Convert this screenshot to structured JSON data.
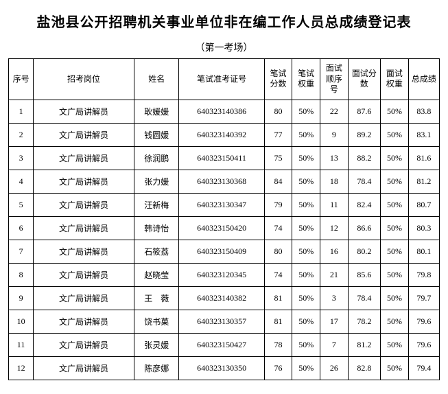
{
  "title": "盐池县公开招聘机关事业单位非在编工作人员总成绩登记表",
  "subtitle": "（第一考场）",
  "columns": [
    "序号",
    "招考岗位",
    "姓名",
    "笔试准考证号",
    "笔试分数",
    "笔试权重",
    "面试顺序号",
    "面试分数",
    "面试权重",
    "总成绩"
  ],
  "rows": [
    {
      "seq": "1",
      "pos": "文广局讲解员",
      "name": "耿媛媛",
      "exam": "640323140386",
      "ws": "80",
      "ww": "50%",
      "io": "22",
      "is": "87.6",
      "iw": "50%",
      "tot": "83.8"
    },
    {
      "seq": "2",
      "pos": "文广局讲解员",
      "name": "钱圆媛",
      "exam": "640323140392",
      "ws": "77",
      "ww": "50%",
      "io": "9",
      "is": "89.2",
      "iw": "50%",
      "tot": "83.1"
    },
    {
      "seq": "3",
      "pos": "文广局讲解员",
      "name": "徐润鹏",
      "exam": "640323150411",
      "ws": "75",
      "ww": "50%",
      "io": "13",
      "is": "88.2",
      "iw": "50%",
      "tot": "81.6"
    },
    {
      "seq": "4",
      "pos": "文广局讲解员",
      "name": "张力媛",
      "exam": "640323130368",
      "ws": "84",
      "ww": "50%",
      "io": "18",
      "is": "78.4",
      "iw": "50%",
      "tot": "81.2"
    },
    {
      "seq": "5",
      "pos": "文广局讲解员",
      "name": "汪新梅",
      "exam": "640323130347",
      "ws": "79",
      "ww": "50%",
      "io": "11",
      "is": "82.4",
      "iw": "50%",
      "tot": "80.7"
    },
    {
      "seq": "6",
      "pos": "文广局讲解员",
      "name": "韩诗怡",
      "exam": "640323150420",
      "ws": "74",
      "ww": "50%",
      "io": "12",
      "is": "86.6",
      "iw": "50%",
      "tot": "80.3"
    },
    {
      "seq": "7",
      "pos": "文广局讲解员",
      "name": "石筱荔",
      "exam": "640323150409",
      "ws": "80",
      "ww": "50%",
      "io": "16",
      "is": "80.2",
      "iw": "50%",
      "tot": "80.1"
    },
    {
      "seq": "8",
      "pos": "文广局讲解员",
      "name": "赵晓莹",
      "exam": "640323120345",
      "ws": "74",
      "ww": "50%",
      "io": "21",
      "is": "85.6",
      "iw": "50%",
      "tot": "79.8"
    },
    {
      "seq": "9",
      "pos": "文广局讲解员",
      "name": "王　薇",
      "exam": "640323140382",
      "ws": "81",
      "ww": "50%",
      "io": "3",
      "is": "78.4",
      "iw": "50%",
      "tot": "79.7"
    },
    {
      "seq": "10",
      "pos": "文广局讲解员",
      "name": "饶书菓",
      "exam": "640323130357",
      "ws": "81",
      "ww": "50%",
      "io": "17",
      "is": "78.2",
      "iw": "50%",
      "tot": "79.6"
    },
    {
      "seq": "11",
      "pos": "文广局讲解员",
      "name": "张灵媛",
      "exam": "640323150427",
      "ws": "78",
      "ww": "50%",
      "io": "7",
      "is": "81.2",
      "iw": "50%",
      "tot": "79.6"
    },
    {
      "seq": "12",
      "pos": "文广局讲解员",
      "name": "陈彦娜",
      "exam": "640323130350",
      "ws": "76",
      "ww": "50%",
      "io": "26",
      "is": "82.8",
      "iw": "50%",
      "tot": "79.4"
    }
  ],
  "style": {
    "title_fontsize": 20,
    "body_fontsize": 12,
    "border_color": "#000000",
    "background_color": "#ffffff",
    "text_color": "#000000"
  }
}
